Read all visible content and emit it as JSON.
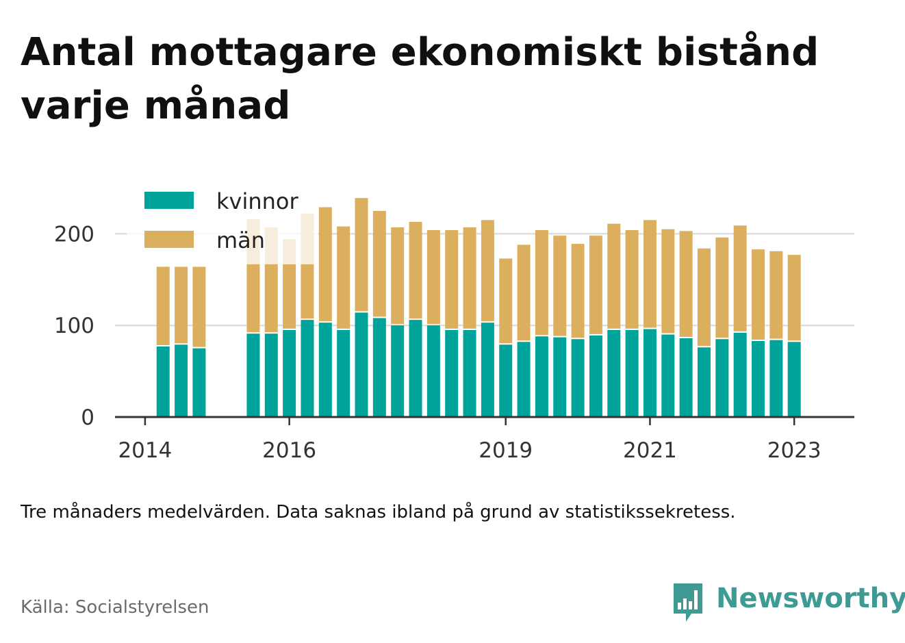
{
  "title": "Antal mottagare ekonomiskt bistånd varje månad",
  "note": "Tre månaders medelvärden. Data saknas ibland på grund av statistikssekretess.",
  "source": "Källa: Socialstyrelsen",
  "brand": {
    "name": "Newsworthy",
    "icon": "newsworthy-chart-bubble-icon",
    "color": "#3d9b94"
  },
  "chart_data": {
    "type": "bar",
    "stacked": true,
    "grid": true,
    "legend_position": "top-left",
    "ylim": [
      0,
      240
    ],
    "y_ticks": [
      0,
      100,
      200
    ],
    "x_ticks": [
      "2014",
      "2016",
      "2019",
      "2021",
      "2023"
    ],
    "x_tick_dates": [
      "2014-01",
      "2016-01",
      "2019-01",
      "2021-01",
      "2023-01"
    ],
    "x_range": [
      "2013-08",
      "2023-11"
    ],
    "periods": [
      "2014-04",
      "2014-07",
      "2014-10",
      "2015-07",
      "2015-10",
      "2016-01",
      "2016-04",
      "2016-07",
      "2016-10",
      "2017-01",
      "2017-04",
      "2017-07",
      "2017-10",
      "2018-01",
      "2018-04",
      "2018-07",
      "2018-10",
      "2019-01",
      "2019-04",
      "2019-07",
      "2019-10",
      "2020-01",
      "2020-04",
      "2020-07",
      "2020-10",
      "2021-01",
      "2021-04",
      "2021-07",
      "2021-10",
      "2022-01",
      "2022-04",
      "2022-07",
      "2022-10",
      "2023-01"
    ],
    "series": [
      {
        "name": "kvinnor",
        "color": "#00a399",
        "values": [
          77,
          79,
          75,
          91,
          91,
          95,
          106,
          103,
          95,
          114,
          108,
          100,
          106,
          100,
          95,
          95,
          103,
          79,
          82,
          88,
          87,
          85,
          89,
          95,
          95,
          96,
          90,
          86,
          76,
          85,
          92,
          83,
          84,
          82
        ]
      },
      {
        "name": "män",
        "color": "#dcaf5f",
        "values": [
          87,
          85,
          89,
          125,
          116,
          99,
          116,
          126,
          113,
          125,
          117,
          107,
          107,
          104,
          109,
          112,
          112,
          94,
          106,
          116,
          111,
          104,
          109,
          116,
          109,
          119,
          115,
          117,
          108,
          111,
          117,
          100,
          97,
          95
        ]
      }
    ]
  }
}
